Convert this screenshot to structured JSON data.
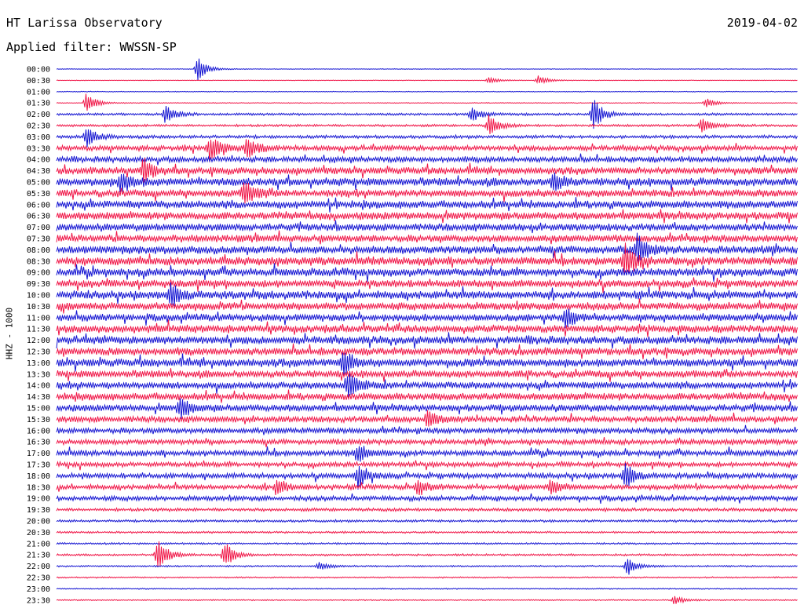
{
  "header": {
    "title": "HT Larissa Observatory",
    "date": "2019-04-02",
    "filter": "Applied filter: WWSSN-SP"
  },
  "chart_data": {
    "type": "line",
    "title": "HT Larissa Observatory",
    "subtitle": "Applied filter: WWSSN-SP",
    "ylabel": "HHZ - 1000",
    "row_labels": [
      "00:00",
      "00:30",
      "01:00",
      "01:30",
      "02:00",
      "02:30",
      "03:00",
      "03:30",
      "04:00",
      "04:30",
      "05:00",
      "05:30",
      "06:00",
      "06:30",
      "07:00",
      "07:30",
      "08:00",
      "08:30",
      "09:00",
      "09:30",
      "10:00",
      "10:30",
      "11:00",
      "11:30",
      "12:00",
      "12:30",
      "13:00",
      "13:30",
      "14:00",
      "14:30",
      "15:00",
      "15:30",
      "16:00",
      "16:30",
      "17:00",
      "17:30",
      "18:00",
      "18:30",
      "19:00",
      "19:30",
      "20:00",
      "20:30",
      "21:00",
      "21:30",
      "22:00",
      "22:30",
      "23:00",
      "23:30"
    ],
    "trace_colors": [
      "#1414d2",
      "#f01446"
    ],
    "noise_level": [
      0.3,
      0.3,
      0.4,
      0.4,
      1.2,
      1.2,
      1.6,
      2.6,
      2.8,
      3.4,
      4.0,
      3.6,
      3.8,
      3.8,
      3.6,
      3.6,
      4.0,
      4.2,
      4.0,
      3.8,
      4.0,
      3.8,
      3.6,
      3.8,
      4.0,
      3.8,
      4.0,
      3.6,
      3.4,
      3.6,
      3.4,
      3.0,
      2.8,
      2.6,
      2.8,
      2.4,
      2.6,
      2.4,
      2.4,
      1.6,
      1.2,
      1.0,
      0.9,
      1.0,
      0.8,
      0.7,
      0.6,
      0.6
    ],
    "events": [
      {
        "row": 0,
        "minute": 5.7,
        "amplitude": 16
      },
      {
        "row": 1,
        "minute": 17.5,
        "amplitude": 5
      },
      {
        "row": 1,
        "minute": 19.5,
        "amplitude": 6
      },
      {
        "row": 3,
        "minute": 1.2,
        "amplitude": 14
      },
      {
        "row": 3,
        "minute": 26.3,
        "amplitude": 6
      },
      {
        "row": 4,
        "minute": 4.4,
        "amplitude": 12
      },
      {
        "row": 4,
        "minute": 16.8,
        "amplitude": 9
      },
      {
        "row": 4,
        "minute": 21.7,
        "amplitude": 22
      },
      {
        "row": 5,
        "minute": 17.5,
        "amplitude": 14
      },
      {
        "row": 5,
        "minute": 26.1,
        "amplitude": 10
      },
      {
        "row": 6,
        "minute": 1.2,
        "amplitude": 14
      },
      {
        "row": 7,
        "minute": 6.2,
        "amplitude": 18
      },
      {
        "row": 7,
        "minute": 7.7,
        "amplitude": 14
      },
      {
        "row": 9,
        "minute": 3.5,
        "amplitude": 16
      },
      {
        "row": 10,
        "minute": 2.6,
        "amplitude": 14
      },
      {
        "row": 10,
        "minute": 20.1,
        "amplitude": 12
      },
      {
        "row": 11,
        "minute": 7.6,
        "amplitude": 16
      },
      {
        "row": 16,
        "minute": 23.5,
        "amplitude": 18
      },
      {
        "row": 17,
        "minute": 23.0,
        "amplitude": 20
      },
      {
        "row": 20,
        "minute": 4.6,
        "amplitude": 14
      },
      {
        "row": 22,
        "minute": 20.6,
        "amplitude": 12
      },
      {
        "row": 26,
        "minute": 11.6,
        "amplitude": 16
      },
      {
        "row": 28,
        "minute": 11.8,
        "amplitude": 18
      },
      {
        "row": 30,
        "minute": 5.0,
        "amplitude": 14
      },
      {
        "row": 31,
        "minute": 15.0,
        "amplitude": 12
      },
      {
        "row": 34,
        "minute": 12.2,
        "amplitude": 12
      },
      {
        "row": 36,
        "minute": 12.2,
        "amplitude": 16
      },
      {
        "row": 36,
        "minute": 23.0,
        "amplitude": 16
      },
      {
        "row": 37,
        "minute": 8.9,
        "amplitude": 12
      },
      {
        "row": 37,
        "minute": 14.6,
        "amplitude": 10
      },
      {
        "row": 37,
        "minute": 20.0,
        "amplitude": 10
      },
      {
        "row": 43,
        "minute": 4.1,
        "amplitude": 22
      },
      {
        "row": 43,
        "minute": 6.8,
        "amplitude": 18
      },
      {
        "row": 44,
        "minute": 23.1,
        "amplitude": 12
      },
      {
        "row": 44,
        "minute": 10.6,
        "amplitude": 6
      },
      {
        "row": 47,
        "minute": 25.0,
        "amplitude": 6
      }
    ]
  }
}
